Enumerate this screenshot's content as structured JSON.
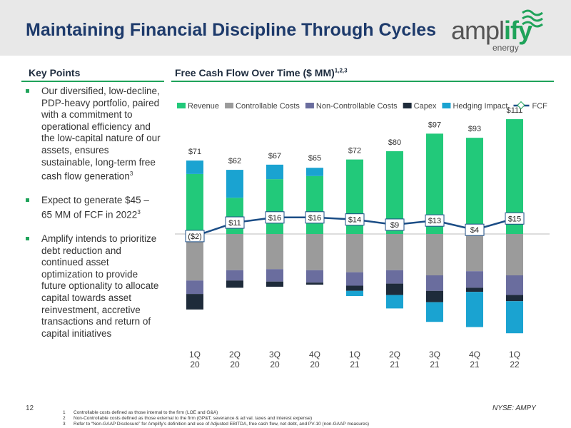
{
  "header": {
    "title": "Maintaining Financial Discipline Through Cycles",
    "logo_main": "ampl",
    "logo_accent": "ify",
    "logo_sub": "energy"
  },
  "key_points": {
    "heading": "Key Points",
    "bullets": [
      {
        "text": "Our diversified, low-decline, PDP-heavy portfolio, paired with a commitment to operational efficiency and the low-capital nature of our assets, ensures sustainable, long-term free cash flow generation",
        "sup": "3"
      },
      {
        "text": "Expect to generate $45 – 65 MM of FCF in 2022",
        "sup": "3"
      },
      {
        "text": "Amplify intends to prioritize debt reduction and continued asset optimization to provide future optionality to allocate capital towards asset reinvestment, accretive transactions and return of capital initiatives"
      }
    ]
  },
  "chart_data": {
    "type": "stacked_bar_line",
    "title": "Free Cash Flow Over Time ($ MM)",
    "title_sup": "1,2,3",
    "categories": [
      "1Q\n20",
      "2Q\n20",
      "3Q\n20",
      "4Q\n20",
      "1Q\n21",
      "2Q\n21",
      "3Q\n21",
      "4Q\n21",
      "1Q\n22"
    ],
    "series": [
      {
        "name": "Revenue",
        "color": "#22c97a",
        "values": [
          58,
          35,
          53,
          56,
          72,
          80,
          97,
          93,
          111
        ]
      },
      {
        "name": "Controllable Costs",
        "color": "#9b9b9b",
        "values": [
          -45,
          -35,
          -34,
          -35,
          -37,
          -35,
          -40,
          -36,
          -40
        ]
      },
      {
        "name": "Non-Controllable Costs",
        "color": "#6a6d9e",
        "values": [
          -13,
          -10,
          -12,
          -12,
          -13,
          -13,
          -15,
          -16,
          -19
        ]
      },
      {
        "name": "Capex",
        "color": "#1e2b3a",
        "values": [
          -15,
          -7,
          -5,
          -2,
          -5,
          -11,
          -11,
          -4,
          -6
        ]
      },
      {
        "name": "Hedging Impact",
        "color": "#1aa3d1",
        "values": [
          13,
          27,
          14,
          8,
          -5,
          -13,
          -19,
          -34,
          -31
        ]
      },
      {
        "name": "FCF",
        "type": "line",
        "color": "#1b4d86",
        "values": [
          -2,
          11,
          16,
          16,
          14,
          9,
          13,
          4,
          15
        ],
        "value_labels": [
          "($2)",
          "$11",
          "$16",
          "$16",
          "$14",
          "$9",
          "$13",
          "$4",
          "$15"
        ]
      }
    ],
    "totals": {
      "values": [
        71,
        62,
        67,
        65,
        72,
        80,
        97,
        93,
        111
      ],
      "value_labels": [
        "$71",
        "$62",
        "$67",
        "$65",
        "$72",
        "$80",
        "$97",
        "$93",
        "$111"
      ]
    }
  },
  "footer": {
    "page": "12",
    "ticker": "NYSE: AMPY",
    "footnotes": [
      {
        "number": "1",
        "text": "Controllable costs defined as those internal to the firm (LOE and G&A)"
      },
      {
        "number": "2",
        "text": "Non-Controllable costs defined as those external to the firm (GP&T, severance & ad val. taxes and interest expense)"
      },
      {
        "number": "3",
        "text": "Refer to “Non-GAAP Disclosure” for Amplify’s definition and use of Adjusted EBITDA, free cash flow, net debt, and PV-10 (non-GAAP measures)"
      }
    ]
  }
}
